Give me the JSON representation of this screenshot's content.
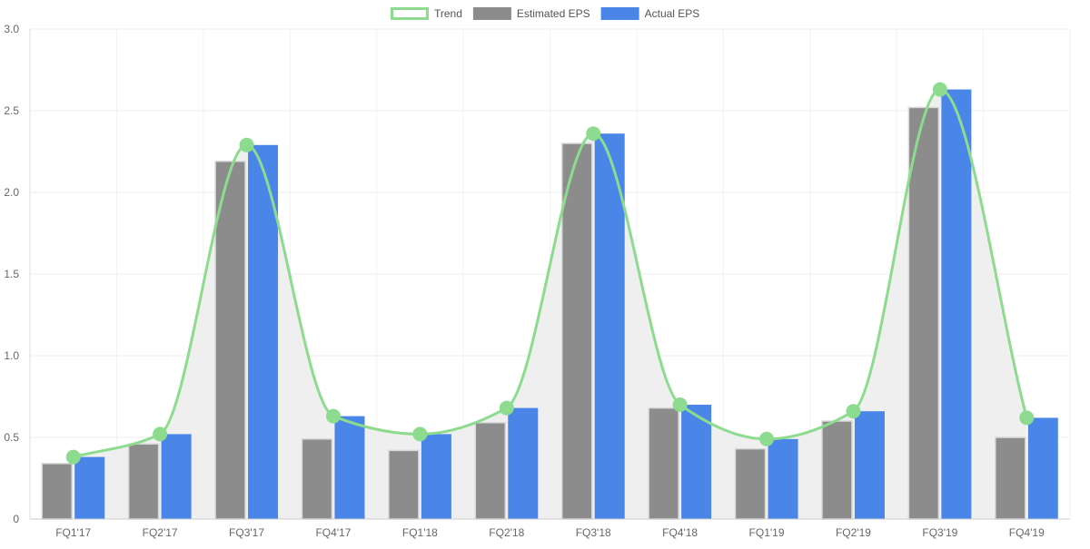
{
  "legend": [
    {
      "key": "trend",
      "label": "Trend",
      "color": "#8ddb8f",
      "style": "outline"
    },
    {
      "key": "estimated",
      "label": "Estimated EPS",
      "color": "#8c8c8c",
      "style": "filled"
    },
    {
      "key": "actual",
      "label": "Actual EPS",
      "color": "#4a86e8",
      "style": "filled"
    }
  ],
  "chart_data": {
    "type": "bar",
    "categories": [
      "FQ1'17",
      "FQ2'17",
      "FQ3'17",
      "FQ4'17",
      "FQ1'18",
      "FQ2'18",
      "FQ3'18",
      "FQ4'18",
      "FQ1'19",
      "FQ2'19",
      "FQ3'19",
      "FQ4'19"
    ],
    "series": [
      {
        "name": "Estimated EPS",
        "type": "bar",
        "color": "#8c8c8c",
        "values": [
          0.34,
          0.46,
          2.19,
          0.49,
          0.42,
          0.59,
          2.3,
          0.68,
          0.43,
          0.6,
          2.52,
          0.5
        ]
      },
      {
        "name": "Actual EPS",
        "type": "bar",
        "color": "#4a86e8",
        "values": [
          0.38,
          0.52,
          2.29,
          0.63,
          0.52,
          0.68,
          2.36,
          0.7,
          0.49,
          0.66,
          2.63,
          0.62
        ]
      },
      {
        "name": "Trend",
        "type": "line",
        "color": "#8ddb8f",
        "smooth": true,
        "area_fill": "#efefef",
        "values": [
          0.38,
          0.52,
          2.29,
          0.63,
          0.52,
          0.68,
          2.36,
          0.7,
          0.49,
          0.66,
          2.63,
          0.62
        ]
      }
    ],
    "yticks": [
      "0",
      "0.5",
      "1.0",
      "1.5",
      "2.0",
      "2.5",
      "3.0"
    ],
    "ylim": [
      0,
      3.0
    ],
    "grid": true,
    "legend_position": "top-center"
  }
}
